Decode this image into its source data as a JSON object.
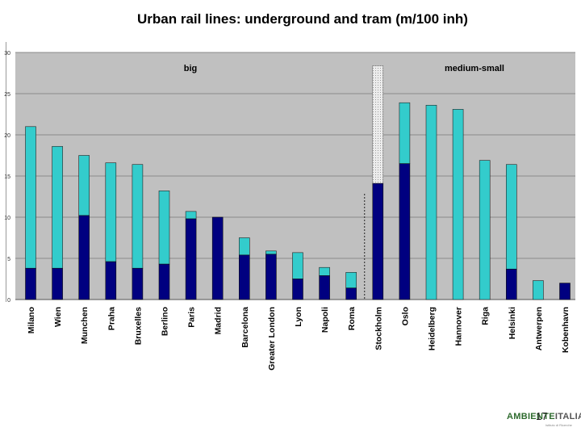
{
  "slide": {
    "number": "17",
    "logo": {
      "part1": "AMBIENTE",
      "part2": "ITALIA",
      "tagline": "Istituto di Ricerche"
    }
  },
  "chart_data": {
    "type": "bar",
    "stacked": true,
    "title": "Urban rail lines: underground and tram (m/100 inh)",
    "xlabel": "",
    "ylabel": "",
    "ylim": [
      0,
      30
    ],
    "yticks": [
      0,
      5,
      10,
      15,
      20,
      25,
      30
    ],
    "grid": true,
    "categories": [
      "Milano",
      "Wien",
      "Munchen",
      "Praha",
      "Bruxelles",
      "Berlino",
      "Paris",
      "Madrid",
      "Barcelona",
      "Greater London",
      "Lyon",
      "Napoli",
      "Roma",
      "Stockholm",
      "Oslo",
      "Heidelberg",
      "Hannover",
      "Riga",
      "Helsinki",
      "Antwerpen",
      "Kobenhavn"
    ],
    "series": [
      {
        "name": "underground",
        "color": "#000080",
        "values": [
          3.8,
          3.8,
          10.2,
          4.6,
          3.8,
          4.3,
          9.8,
          10.0,
          5.4,
          5.5,
          2.5,
          2.9,
          1.4,
          14.1,
          16.5,
          0,
          0,
          0,
          3.7,
          0,
          2.0
        ]
      },
      {
        "name": "tram",
        "color": "#33CCCC",
        "values": [
          17.2,
          14.8,
          7.3,
          12.0,
          12.6,
          8.9,
          0.9,
          0,
          2.1,
          0.4,
          3.2,
          1.0,
          1.9,
          0,
          7.4,
          23.6,
          23.1,
          16.9,
          12.7,
          2.3,
          0
        ]
      }
    ],
    "extra_stockholm_dotted_top": 28.4,
    "group_labels": [
      {
        "label": "big",
        "group": "big"
      },
      {
        "label": "medium-small",
        "group": "medium-small"
      }
    ],
    "colors": {
      "plot_bg": "#c0c0c0",
      "grid": "#8a8a8a",
      "underground": "#000080",
      "tram": "#33CCCC",
      "hatch": "#d8d8d8"
    }
  }
}
